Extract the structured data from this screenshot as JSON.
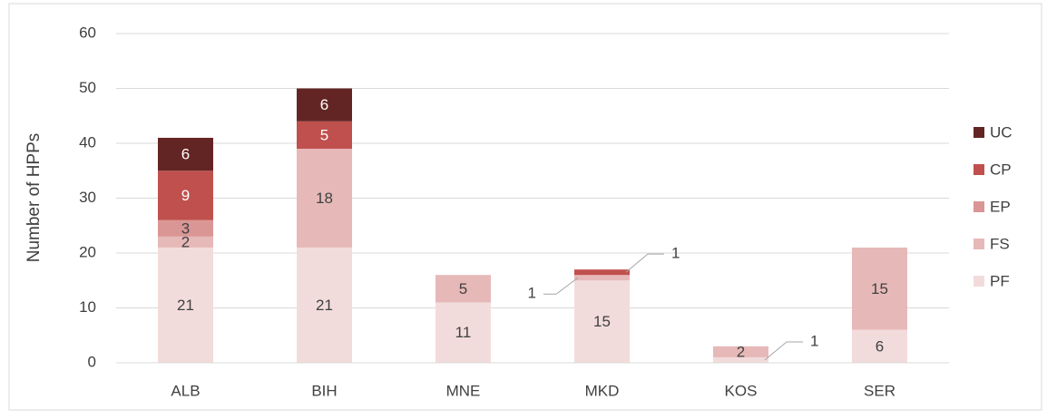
{
  "chart_data": {
    "type": "bar",
    "stacked": true,
    "y_label": "Number of HPPs",
    "categories": [
      "ALB",
      "BIH",
      "MNE",
      "MKD",
      "KOS",
      "SER"
    ],
    "series": [
      {
        "name": "PF",
        "color": "#f2dcdb",
        "values": [
          21,
          21,
          11,
          15,
          1,
          6
        ]
      },
      {
        "name": "FS",
        "color": "#e6b9b8",
        "values": [
          2,
          18,
          5,
          1,
          2,
          15
        ]
      },
      {
        "name": "EP",
        "color": "#d99694",
        "values": [
          3,
          null,
          null,
          null,
          null,
          null
        ]
      },
      {
        "name": "CP",
        "color": "#c0504d",
        "values": [
          9,
          5,
          null,
          1,
          null,
          null
        ]
      },
      {
        "name": "UC",
        "color": "#632523",
        "values": [
          6,
          6,
          null,
          null,
          null,
          null
        ]
      }
    ],
    "ylim": [
      0,
      60
    ],
    "yticks": [
      0,
      10,
      20,
      30,
      40,
      50,
      60
    ],
    "grid": true,
    "legend": "right"
  }
}
